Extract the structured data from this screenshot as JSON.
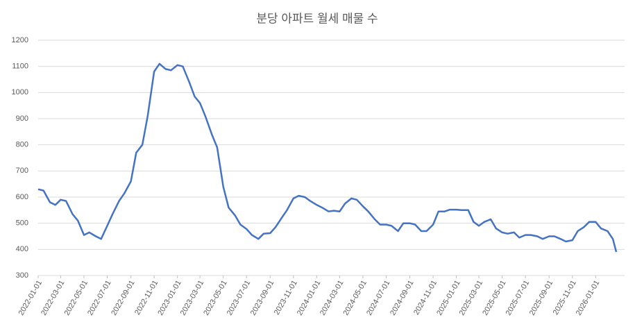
{
  "chart_data": {
    "type": "line",
    "title": "분당 아파트 월세 매물 수",
    "x": [
      "2022-01-01",
      "2022-01-15",
      "2022-02-01",
      "2022-02-15",
      "2022-03-01",
      "2022-03-15",
      "2022-04-01",
      "2022-04-15",
      "2022-05-01",
      "2022-05-15",
      "2022-06-01",
      "2022-06-15",
      "2022-07-01",
      "2022-07-15",
      "2022-08-01",
      "2022-08-15",
      "2022-09-01",
      "2022-09-15",
      "2022-10-01",
      "2022-10-15",
      "2022-11-01",
      "2022-11-15",
      "2022-12-01",
      "2022-12-15",
      "2023-01-01",
      "2023-01-15",
      "2023-02-01",
      "2023-02-15",
      "2023-03-01",
      "2023-03-15",
      "2023-04-01",
      "2023-04-15",
      "2023-05-01",
      "2023-05-15",
      "2023-06-01",
      "2023-06-15",
      "2023-07-01",
      "2023-07-15",
      "2023-08-01",
      "2023-08-15",
      "2023-09-01",
      "2023-09-15",
      "2023-10-01",
      "2023-10-15",
      "2023-11-01",
      "2023-11-15",
      "2023-12-01",
      "2023-12-15",
      "2024-01-01",
      "2024-01-15",
      "2024-02-01",
      "2024-02-15",
      "2024-03-01",
      "2024-03-15",
      "2024-04-01",
      "2024-04-15",
      "2024-05-01",
      "2024-05-15",
      "2024-06-01",
      "2024-06-15",
      "2024-07-01",
      "2024-07-15",
      "2024-08-01",
      "2024-08-15",
      "2024-09-01",
      "2024-09-15",
      "2024-10-01",
      "2024-10-15",
      "2024-11-01",
      "2024-11-15",
      "2024-12-01",
      "2024-12-15",
      "2025-01-01",
      "2025-01-15",
      "2025-02-01",
      "2025-02-15",
      "2025-03-01",
      "2025-03-15",
      "2025-04-01",
      "2025-04-15",
      "2025-05-01",
      "2025-05-15",
      "2025-06-01",
      "2025-06-15",
      "2025-07-01",
      "2025-07-15",
      "2025-08-01",
      "2025-08-15",
      "2025-09-01",
      "2025-09-15",
      "2025-10-01",
      "2025-10-15",
      "2025-11-01",
      "2025-11-15",
      "2025-12-01",
      "2025-12-15",
      "2026-01-01",
      "2026-01-15",
      "2026-02-01",
      "2026-02-15",
      "2026-02-24"
    ],
    "series": [
      {
        "name": "매물 수",
        "color": "#4472c4",
        "values": [
          630,
          625,
          580,
          570,
          590,
          585,
          535,
          510,
          455,
          465,
          450,
          440,
          490,
          535,
          585,
          615,
          660,
          770,
          800,
          910,
          1080,
          1110,
          1090,
          1085,
          1105,
          1100,
          1040,
          985,
          960,
          910,
          840,
          790,
          640,
          560,
          530,
          495,
          478,
          455,
          440,
          460,
          462,
          485,
          520,
          550,
          595,
          605,
          600,
          585,
          570,
          560,
          545,
          548,
          545,
          575,
          595,
          590,
          565,
          545,
          515,
          495,
          495,
          490,
          470,
          500,
          500,
          495,
          470,
          470,
          495,
          545,
          545,
          552,
          552,
          550,
          550,
          505,
          490,
          505,
          515,
          480,
          465,
          460,
          465,
          445,
          455,
          455,
          450,
          440,
          450,
          450,
          440,
          430,
          435,
          470,
          485,
          505,
          505,
          480,
          470,
          440,
          390
        ]
      }
    ],
    "xlim": [
      "2022-01-01",
      "2026-02-24"
    ],
    "xticks": [
      "2022-01-01",
      "2022-03-01",
      "2022-05-01",
      "2022-07-01",
      "2022-09-01",
      "2022-11-01",
      "2023-01-01",
      "2023-03-01",
      "2023-05-01",
      "2023-07-01",
      "2023-09-01",
      "2023-11-01",
      "2024-01-01",
      "2024-03-01",
      "2024-05-01",
      "2024-07-01",
      "2024-09-01",
      "2024-11-01",
      "2025-01-01",
      "2025-03-01",
      "2025-05-01",
      "2025-07-01",
      "2025-09-01",
      "2025-11-01",
      "2026-01-01"
    ],
    "ylim": [
      300,
      1200
    ],
    "yticks": [
      300,
      400,
      500,
      600,
      700,
      800,
      900,
      1000,
      1100,
      1200
    ],
    "grid": true
  }
}
